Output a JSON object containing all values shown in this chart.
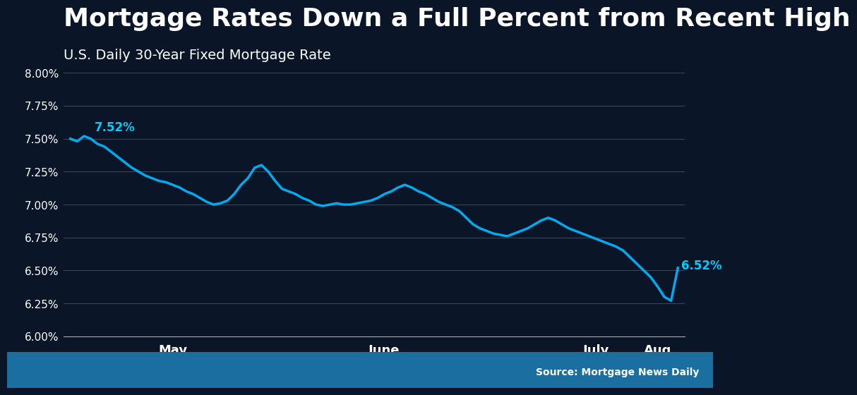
{
  "title": "Mortgage Rates Down a Full Percent from Recent High",
  "subtitle": "U.S. Daily 30-Year Fixed Mortgage Rate",
  "source": "Source: Mortgage News Daily",
  "line_color": "#00AAEE",
  "bg_color_dark": "#0a1628",
  "bg_color_footer": "#1a6fa0",
  "text_color": "#ffffff",
  "title_fontsize": 26,
  "subtitle_fontsize": 14,
  "annotation_start": "7.52%",
  "annotation_end": "6.52%",
  "ylim": [
    6.0,
    8.05
  ],
  "yticks": [
    6.0,
    6.25,
    6.5,
    6.75,
    7.0,
    7.25,
    7.5,
    7.75,
    8.0
  ],
  "x_labels": [
    "May",
    "June",
    "July",
    "Aug"
  ],
  "values": [
    7.5,
    7.48,
    7.52,
    7.5,
    7.46,
    7.44,
    7.4,
    7.36,
    7.32,
    7.28,
    7.25,
    7.22,
    7.2,
    7.18,
    7.17,
    7.15,
    7.13,
    7.1,
    7.08,
    7.05,
    7.02,
    7.0,
    7.01,
    7.03,
    7.08,
    7.15,
    7.2,
    7.28,
    7.3,
    7.25,
    7.18,
    7.12,
    7.1,
    7.08,
    7.05,
    7.03,
    7.0,
    6.99,
    7.0,
    7.01,
    7.0,
    7.0,
    7.01,
    7.02,
    7.03,
    7.05,
    7.08,
    7.1,
    7.13,
    7.15,
    7.13,
    7.1,
    7.08,
    7.05,
    7.02,
    7.0,
    6.98,
    6.95,
    6.9,
    6.85,
    6.82,
    6.8,
    6.78,
    6.77,
    6.76,
    6.78,
    6.8,
    6.82,
    6.85,
    6.88,
    6.9,
    6.88,
    6.85,
    6.82,
    6.8,
    6.78,
    6.76,
    6.74,
    6.72,
    6.7,
    6.68,
    6.65,
    6.6,
    6.55,
    6.5,
    6.45,
    6.38,
    6.3,
    6.27,
    6.52
  ],
  "x_tick_positions": [
    15,
    46,
    77,
    86
  ],
  "line_width": 2.5
}
